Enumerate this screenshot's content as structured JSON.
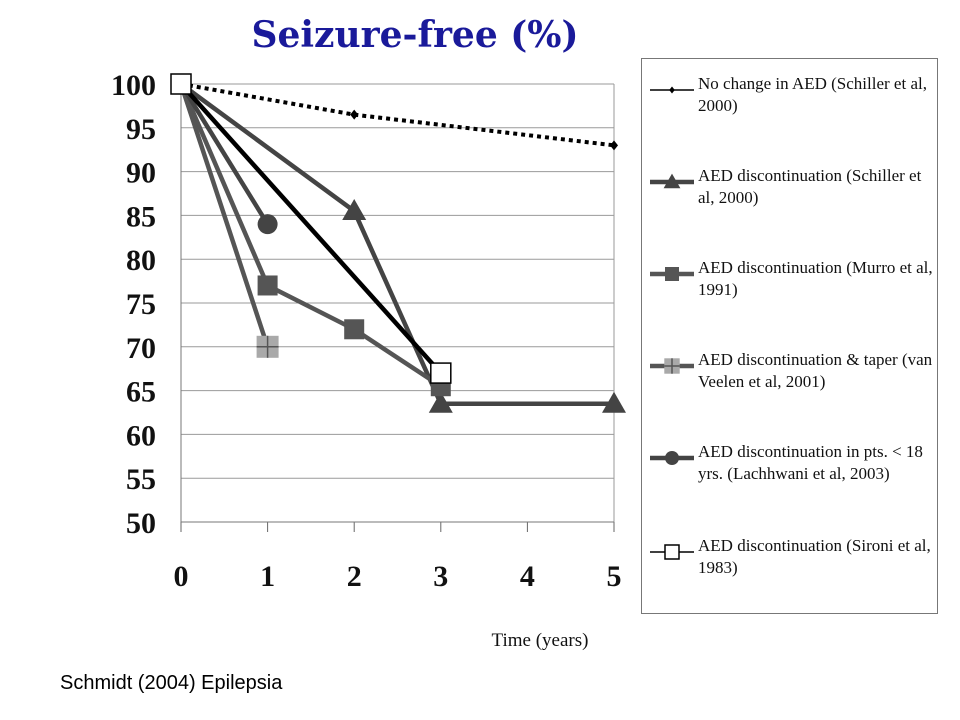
{
  "title": "Seizure-free (%)",
  "citation": "Schmidt (2004) Epilepsia",
  "chart_data": {
    "type": "line",
    "xlabel": "Time (years)",
    "ylabel": "",
    "x_ticks": [
      0,
      1,
      2,
      3,
      4,
      5
    ],
    "y_ticks": [
      50,
      55,
      60,
      65,
      70,
      75,
      80,
      85,
      90,
      95,
      100
    ],
    "xlim": [
      0,
      5
    ],
    "ylim": [
      50,
      100
    ],
    "grid": "horizontal",
    "legend_position": "right",
    "series": [
      {
        "name": "No change in AED (Schiller et al, 2000)",
        "marker": "diamond",
        "line_style": "dotted",
        "color": "#000000",
        "points": [
          [
            0,
            100
          ],
          [
            2,
            96.5
          ],
          [
            5,
            93
          ]
        ]
      },
      {
        "name": "AED discontinuation (Schiller et al, 2000)",
        "marker": "triangle",
        "line_style": "solid",
        "color": "#444444",
        "points": [
          [
            0,
            100
          ],
          [
            2,
            85.5
          ],
          [
            3,
            63.5
          ],
          [
            5,
            63.5
          ]
        ]
      },
      {
        "name": "AED discontinuation (Murro et al, 1991)",
        "marker": "square",
        "line_style": "solid",
        "color": "#555555",
        "points": [
          [
            0,
            100
          ],
          [
            1,
            77
          ],
          [
            2,
            72
          ],
          [
            3,
            65.5
          ]
        ]
      },
      {
        "name": "AED discontinuation & taper (van Veelen et al, 2001)",
        "marker": "cross-square",
        "line_style": "solid",
        "color": "#555555",
        "marker_color": "#a9a9a9",
        "points": [
          [
            0,
            100
          ],
          [
            1,
            70
          ]
        ]
      },
      {
        "name": "AED discontinuation in pts. < 18 yrs. (Lachhwani et al, 2003)",
        "marker": "circle",
        "line_style": "solid",
        "color": "#444444",
        "points": [
          [
            0,
            100
          ],
          [
            1,
            84
          ]
        ]
      },
      {
        "name": "AED discontinuation (Sironi et al, 1983)",
        "marker": "open-square",
        "line_style": "solid",
        "color": "#000000",
        "points": [
          [
            0,
            100
          ],
          [
            3,
            67
          ]
        ]
      }
    ]
  }
}
